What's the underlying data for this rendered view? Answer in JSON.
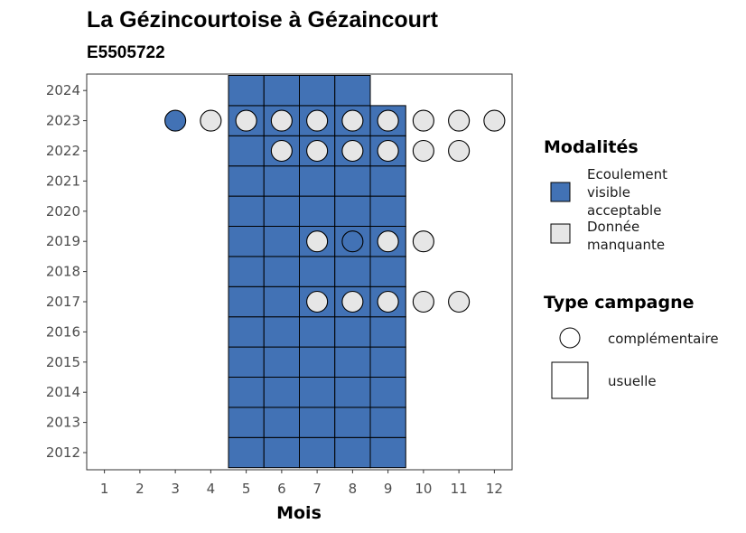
{
  "chart_data": {
    "type": "heatmap",
    "title": "La Gézincourtoise à Gézaincourt",
    "subtitle": "E5505722",
    "xlabel": "Mois",
    "ylabel": "",
    "x_categories": [
      "1",
      "2",
      "3",
      "4",
      "5",
      "6",
      "7",
      "8",
      "9",
      "10",
      "11",
      "12"
    ],
    "y_categories": [
      "2012",
      "2013",
      "2014",
      "2015",
      "2016",
      "2017",
      "2018",
      "2019",
      "2020",
      "2021",
      "2022",
      "2023",
      "2024"
    ],
    "colors": {
      "Ecoulement visible acceptable": "#4272b5",
      "Donnée manquante": "#e6e6e6"
    },
    "legend_placement": "right",
    "legend": {
      "modalites": {
        "title": "Modalités",
        "items": [
          {
            "label_lines": [
              "Ecoulement",
              "visible",
              "acceptable"
            ],
            "key": "Ecoulement visible acceptable"
          },
          {
            "label_lines": [
              "Donnée",
              "manquante"
            ],
            "key": "Donnée manquante"
          }
        ]
      },
      "type_campagne": {
        "title": "Type campagne",
        "items": [
          {
            "label": "complémentaire",
            "shape": "circle"
          },
          {
            "label": "usuelle",
            "shape": "square"
          }
        ]
      }
    },
    "usuelle": [
      {
        "year": 2012,
        "months": [
          5,
          6,
          7,
          8,
          9
        ],
        "modalite": "Ecoulement visible acceptable"
      },
      {
        "year": 2013,
        "months": [
          5,
          6,
          7,
          8,
          9
        ],
        "modalite": "Ecoulement visible acceptable"
      },
      {
        "year": 2014,
        "months": [
          5,
          6,
          7,
          8,
          9
        ],
        "modalite": "Ecoulement visible acceptable"
      },
      {
        "year": 2015,
        "months": [
          5,
          6,
          7,
          8,
          9
        ],
        "modalite": "Ecoulement visible acceptable"
      },
      {
        "year": 2016,
        "months": [
          5,
          6,
          7,
          8,
          9
        ],
        "modalite": "Ecoulement visible acceptable"
      },
      {
        "year": 2017,
        "months": [
          5,
          6,
          7,
          8,
          9
        ],
        "modalite": "Ecoulement visible acceptable"
      },
      {
        "year": 2018,
        "months": [
          5,
          6,
          7,
          8,
          9
        ],
        "modalite": "Ecoulement visible acceptable"
      },
      {
        "year": 2019,
        "months": [
          5,
          6,
          7,
          8,
          9
        ],
        "modalite": "Ecoulement visible acceptable"
      },
      {
        "year": 2020,
        "months": [
          5,
          6,
          7,
          8,
          9
        ],
        "modalite": "Ecoulement visible acceptable"
      },
      {
        "year": 2021,
        "months": [
          5,
          6,
          7,
          8,
          9
        ],
        "modalite": "Ecoulement visible acceptable"
      },
      {
        "year": 2022,
        "months": [
          5,
          6,
          7,
          8,
          9
        ],
        "modalite": "Ecoulement visible acceptable"
      },
      {
        "year": 2023,
        "months": [
          5,
          6,
          7,
          8,
          9
        ],
        "modalite": "Ecoulement visible acceptable"
      },
      {
        "year": 2024,
        "months": [
          5,
          6,
          7,
          8
        ],
        "modalite": "Ecoulement visible acceptable"
      }
    ],
    "complementaire": [
      {
        "year": 2023,
        "month": 3,
        "modalite": "Ecoulement visible acceptable"
      },
      {
        "year": 2023,
        "month": 4,
        "modalite": "Donnée manquante"
      },
      {
        "year": 2023,
        "month": 5,
        "modalite": "Donnée manquante"
      },
      {
        "year": 2023,
        "month": 6,
        "modalite": "Donnée manquante"
      },
      {
        "year": 2023,
        "month": 7,
        "modalite": "Donnée manquante"
      },
      {
        "year": 2023,
        "month": 8,
        "modalite": "Donnée manquante"
      },
      {
        "year": 2023,
        "month": 9,
        "modalite": "Donnée manquante"
      },
      {
        "year": 2023,
        "month": 10,
        "modalite": "Donnée manquante"
      },
      {
        "year": 2023,
        "month": 11,
        "modalite": "Donnée manquante"
      },
      {
        "year": 2023,
        "month": 12,
        "modalite": "Donnée manquante"
      },
      {
        "year": 2022,
        "month": 6,
        "modalite": "Donnée manquante"
      },
      {
        "year": 2022,
        "month": 7,
        "modalite": "Donnée manquante"
      },
      {
        "year": 2022,
        "month": 8,
        "modalite": "Donnée manquante"
      },
      {
        "year": 2022,
        "month": 9,
        "modalite": "Donnée manquante"
      },
      {
        "year": 2022,
        "month": 10,
        "modalite": "Donnée manquante"
      },
      {
        "year": 2022,
        "month": 11,
        "modalite": "Donnée manquante"
      },
      {
        "year": 2019,
        "month": 7,
        "modalite": "Donnée manquante"
      },
      {
        "year": 2019,
        "month": 8,
        "modalite": "Ecoulement visible acceptable"
      },
      {
        "year": 2019,
        "month": 9,
        "modalite": "Donnée manquante"
      },
      {
        "year": 2019,
        "month": 10,
        "modalite": "Donnée manquante"
      },
      {
        "year": 2017,
        "month": 7,
        "modalite": "Donnée manquante"
      },
      {
        "year": 2017,
        "month": 8,
        "modalite": "Donnée manquante"
      },
      {
        "year": 2017,
        "month": 9,
        "modalite": "Donnée manquante"
      },
      {
        "year": 2017,
        "month": 10,
        "modalite": "Donnée manquante"
      },
      {
        "year": 2017,
        "month": 11,
        "modalite": "Donnée manquante"
      }
    ]
  }
}
